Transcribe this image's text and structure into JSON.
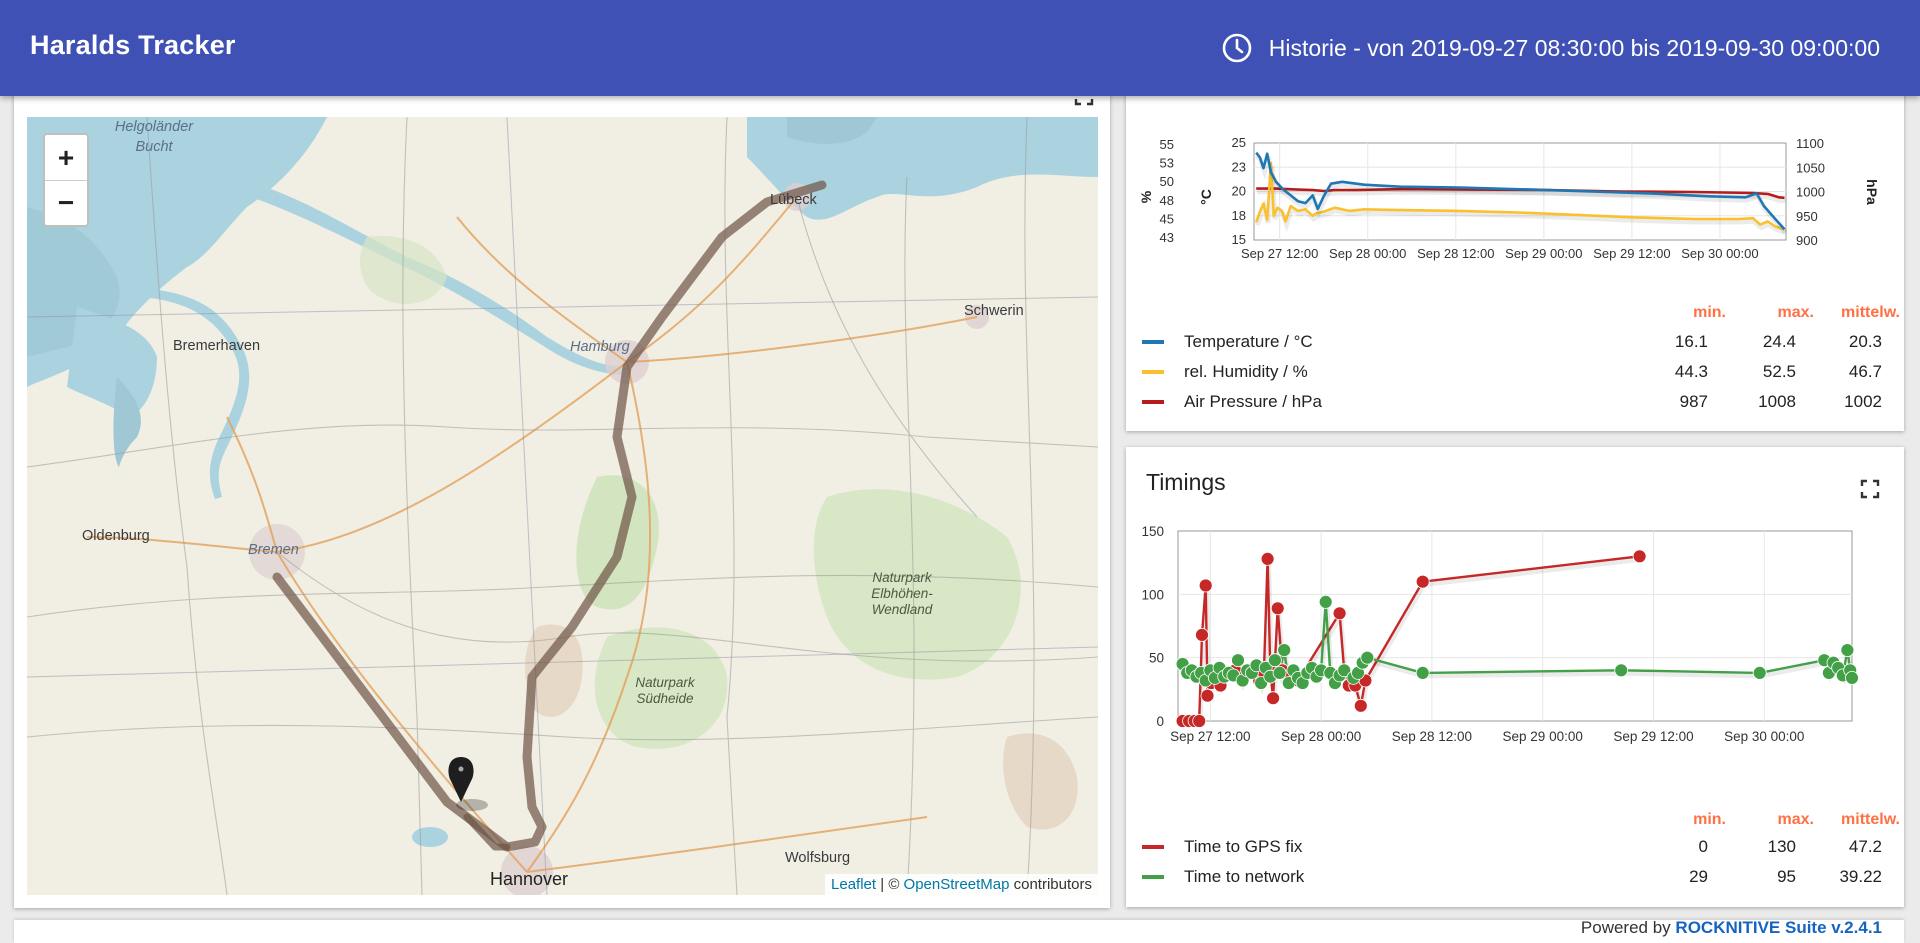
{
  "app": {
    "title": "Haralds Tracker",
    "history": "Historie - von 2019-09-27 08:30:00 bis 2019-09-30 09:00:00",
    "history_icon": "clock-icon"
  },
  "map": {
    "labels": {
      "helgolander": "Helgoländer Bucht",
      "bremerhaven": "Bremerhaven",
      "hamburg": "Hamburg",
      "luebeck": "Lübeck",
      "schwerin": "Schwerin",
      "oldenburg": "Oldenburg",
      "bremen": "Bremen",
      "park_elb": "Naturpark Elbhöhen-Wendland",
      "park_sud": "Naturpark Südheide",
      "wolfsburg": "Wolfsburg",
      "hannover": "Hannover"
    },
    "zoom_in": "+",
    "zoom_out": "−",
    "attribution": {
      "leaflet": "Leaflet",
      "sep": "| ©",
      "osm": "OpenStreetMap",
      "contrib": "contributors"
    }
  },
  "environment": {
    "chart_data": {
      "type": "line",
      "x_ticks": [
        "Sep 27 12:00",
        "Sep 28 00:00",
        "Sep 28 12:00",
        "Sep 29 00:00",
        "Sep 29 12:00",
        "Sep 30 00:00"
      ],
      "y_left_humidity_ticks": [
        "55",
        "53",
        "50",
        "48",
        "45",
        "43"
      ],
      "y_left_temp_ticks": [
        "25",
        "23",
        "20",
        "18",
        "15"
      ],
      "y_right_pressure_ticks": [
        "1100",
        "1050",
        "1000",
        "950",
        "900"
      ],
      "axis_labels": {
        "humidity": "%",
        "temperature": "°C",
        "pressure": "hPa"
      },
      "ranges": {
        "humidity": [
          43,
          55
        ],
        "temperature": [
          15,
          25
        ],
        "pressure": [
          900,
          1100
        ],
        "x_hours": [
          0,
          72.5
        ]
      },
      "series": [
        {
          "name": "Temperature / °C",
          "color": "#1f77b4",
          "axis": "temperature",
          "points": [
            [
              0.3,
              24
            ],
            [
              0.8,
              23.5
            ],
            [
              1.3,
              22.4
            ],
            [
              1.8,
              23.9
            ],
            [
              2.3,
              22
            ],
            [
              3,
              21
            ],
            [
              4,
              20.2
            ],
            [
              5,
              19.6
            ],
            [
              6,
              19
            ],
            [
              7,
              18.8
            ],
            [
              8,
              19.6
            ],
            [
              8.7,
              18.2
            ],
            [
              9.5,
              19.5
            ],
            [
              10.5,
              20.8
            ],
            [
              12,
              21
            ],
            [
              15,
              20.7
            ],
            [
              20,
              20.5
            ],
            [
              28,
              20.4
            ],
            [
              38,
              20.2
            ],
            [
              46,
              20
            ],
            [
              54,
              19.8
            ],
            [
              62,
              19.5
            ],
            [
              67,
              19.4
            ],
            [
              68.5,
              19.8
            ],
            [
              69.5,
              18.5
            ],
            [
              71,
              17.2
            ],
            [
              72.3,
              16.1
            ]
          ]
        },
        {
          "name": "rel. Humidity / %",
          "color": "#fbc02d",
          "axis": "humidity",
          "points": [
            [
              0.3,
              45.2
            ],
            [
              0.8,
              46.5
            ],
            [
              1.3,
              47.5
            ],
            [
              1.8,
              45.5
            ],
            [
              2.3,
              52.5
            ],
            [
              2.7,
              46
            ],
            [
              3.2,
              47
            ],
            [
              3.8,
              46.6
            ],
            [
              4.3,
              45.3
            ],
            [
              5,
              47.2
            ],
            [
              6,
              46.6
            ],
            [
              7,
              46.8
            ],
            [
              8,
              46
            ],
            [
              8.5,
              46.3
            ],
            [
              9.5,
              46.5
            ],
            [
              11,
              47
            ],
            [
              13,
              46.6
            ],
            [
              15,
              46.8
            ],
            [
              20,
              46.7
            ],
            [
              28,
              46.6
            ],
            [
              36,
              46.4
            ],
            [
              44,
              46.1
            ],
            [
              52,
              45.8
            ],
            [
              60,
              45.6
            ],
            [
              66,
              45.6
            ],
            [
              68,
              45.7
            ],
            [
              69,
              44.9
            ],
            [
              70,
              45.3
            ],
            [
              71,
              44.7
            ],
            [
              72.3,
              44.3
            ]
          ]
        },
        {
          "name": "Air Pressure / hPa",
          "color": "#b71c1c",
          "axis": "pressure",
          "points": [
            [
              0.3,
              1006
            ],
            [
              3,
              1006
            ],
            [
              6,
              1004
            ],
            [
              8,
              1003
            ],
            [
              9.5,
              1001
            ],
            [
              11,
              1003
            ],
            [
              14,
              1003
            ],
            [
              20,
              1005
            ],
            [
              30,
              1004
            ],
            [
              40,
              1003
            ],
            [
              50,
              1000
            ],
            [
              60,
              999
            ],
            [
              68,
              997
            ],
            [
              70,
              995
            ],
            [
              71.5,
              988
            ],
            [
              72.3,
              987
            ]
          ]
        }
      ],
      "stats_header": {
        "min": "min.",
        "max": "max.",
        "avg": "mittelw."
      },
      "stats": [
        {
          "name": "Temperature / °C",
          "min": "16.1",
          "max": "24.4",
          "avg": "20.3"
        },
        {
          "name": "rel. Humidity / %",
          "min": "44.3",
          "max": "52.5",
          "avg": "46.7"
        },
        {
          "name": "Air Pressure / hPa",
          "min": "987",
          "max": "1008",
          "avg": "1002"
        }
      ]
    }
  },
  "timings": {
    "title": "Timings",
    "chart_data": {
      "type": "line",
      "x_ticks": [
        "Sep 27 12:00",
        "Sep 28 00:00",
        "Sep 28 12:00",
        "Sep 29 00:00",
        "Sep 29 12:00",
        "Sep 30 00:00"
      ],
      "y_ticks": [
        "150",
        "100",
        "50",
        "0"
      ],
      "ranges": {
        "y": [
          0,
          150
        ],
        "x_hours": [
          0,
          73
        ]
      },
      "series": [
        {
          "name": "Time to GPS fix",
          "color": "#c62828",
          "points": [
            [
              0.5,
              0
            ],
            [
              1.2,
              0
            ],
            [
              1.8,
              0
            ],
            [
              2.3,
              0
            ],
            [
              2.6,
              68
            ],
            [
              3,
              107
            ],
            [
              3.2,
              20
            ],
            [
              3.6,
              30
            ],
            [
              4.1,
              35
            ],
            [
              4.6,
              28
            ],
            [
              5.2,
              36
            ],
            [
              6.2,
              40
            ],
            [
              7,
              34
            ],
            [
              8,
              38
            ],
            [
              8.8,
              32
            ],
            [
              9.3,
              38
            ],
            [
              9.7,
              128
            ],
            [
              10,
              40
            ],
            [
              10.3,
              18
            ],
            [
              10.8,
              89
            ],
            [
              11.3,
              40
            ],
            [
              12,
              35
            ],
            [
              13,
              32
            ],
            [
              17.5,
              85
            ],
            [
              18,
              40
            ],
            [
              18.5,
              28
            ],
            [
              19.2,
              28
            ],
            [
              19.8,
              12
            ],
            [
              20.3,
              32
            ],
            [
              26.5,
              110
            ],
            [
              50,
              130
            ]
          ]
        },
        {
          "name": "Time to network",
          "color": "#43a047",
          "points": [
            [
              0.5,
              45
            ],
            [
              1,
              38
            ],
            [
              1.5,
              40
            ],
            [
              2,
              35
            ],
            [
              2.5,
              38
            ],
            [
              3,
              32
            ],
            [
              3.5,
              40
            ],
            [
              4,
              34
            ],
            [
              4.5,
              42
            ],
            [
              5,
              35
            ],
            [
              5.5,
              38
            ],
            [
              6,
              36
            ],
            [
              6.5,
              48
            ],
            [
              7,
              32
            ],
            [
              7.5,
              40
            ],
            [
              8,
              38
            ],
            [
              8.5,
              44
            ],
            [
              9,
              30
            ],
            [
              9.5,
              42
            ],
            [
              10,
              35
            ],
            [
              10.5,
              48
            ],
            [
              11,
              38
            ],
            [
              11.5,
              56
            ],
            [
              12,
              30
            ],
            [
              12.5,
              40
            ],
            [
              13,
              34
            ],
            [
              13.5,
              30
            ],
            [
              14,
              38
            ],
            [
              14.5,
              42
            ],
            [
              15,
              35
            ],
            [
              15.5,
              40
            ],
            [
              16,
              94
            ],
            [
              16.5,
              38
            ],
            [
              17,
              30
            ],
            [
              17.5,
              36
            ],
            [
              18,
              40
            ],
            [
              19,
              34
            ],
            [
              19.5,
              38
            ],
            [
              20,
              46
            ],
            [
              20.5,
              50
            ],
            [
              26.5,
              38
            ],
            [
              48,
              40
            ],
            [
              63,
              38
            ],
            [
              70,
              48
            ],
            [
              70.5,
              38
            ],
            [
              71,
              46
            ],
            [
              71.5,
              42
            ],
            [
              72,
              36
            ],
            [
              72.5,
              56
            ],
            [
              72.8,
              40
            ],
            [
              73,
              34
            ]
          ]
        }
      ],
      "stats_header": {
        "min": "min.",
        "max": "max.",
        "avg": "mittelw."
      },
      "stats": [
        {
          "name": "Time to GPS fix",
          "min": "0",
          "max": "130",
          "avg": "47.2"
        },
        {
          "name": "Time to network",
          "min": "29",
          "max": "95",
          "avg": "39.22"
        }
      ]
    }
  },
  "footer": {
    "prefix": "Powered by",
    "brand": "ROCKNITIVE Suite v.2.4.1"
  }
}
